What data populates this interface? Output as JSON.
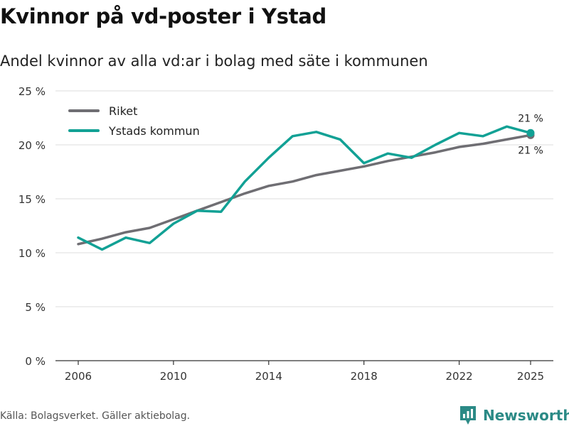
{
  "header": {
    "title": "Kvinnor på vd-poster i Ystad",
    "subtitle": "Andel kvinnor av alla vd:ar i bolag med säte i kommunen"
  },
  "footer": {
    "source": "Källa: Bolagsverket. Gäller aktiebolag.",
    "brand": "Newsworthy",
    "brand_icon": "bar-chart-logo-icon"
  },
  "colors": {
    "riket": "#6f6e73",
    "ystad": "#12a195",
    "grid": "#dddddd",
    "axis": "#333333",
    "brand": "#2b8a86"
  },
  "chart_data": {
    "type": "line",
    "x": [
      2006,
      2007,
      2008,
      2009,
      2010,
      2011,
      2012,
      2013,
      2014,
      2015,
      2016,
      2017,
      2018,
      2019,
      2020,
      2021,
      2022,
      2023,
      2024,
      2025
    ],
    "series": [
      {
        "name": "Riket",
        "color": "#6f6e73",
        "values": [
          10.8,
          11.3,
          11.9,
          12.3,
          13.1,
          13.9,
          14.7,
          15.5,
          16.2,
          16.6,
          17.2,
          17.6,
          18.0,
          18.5,
          18.9,
          19.3,
          19.8,
          20.1,
          20.5,
          20.9
        ]
      },
      {
        "name": "Ystads kommun",
        "color": "#12a195",
        "values": [
          11.4,
          10.3,
          11.4,
          10.9,
          12.7,
          13.9,
          13.8,
          16.6,
          18.8,
          20.8,
          21.2,
          20.5,
          18.3,
          19.2,
          18.8,
          20.0,
          21.1,
          20.8,
          21.7,
          21.1
        ]
      }
    ],
    "xticks": [
      2006,
      2010,
      2014,
      2018,
      2022,
      2025
    ],
    "yticks": [
      {
        "value": 0,
        "label": "0 %"
      },
      {
        "value": 5,
        "label": "5 %"
      },
      {
        "value": 10,
        "label": "10 %"
      },
      {
        "value": 15,
        "label": "15 %"
      },
      {
        "value": 20,
        "label": "20 %"
      },
      {
        "value": 25,
        "label": "25 %"
      }
    ],
    "ylim": [
      0,
      25
    ],
    "grid": true,
    "legend_position": "top-left",
    "end_labels": [
      {
        "series": "Ystads kommun",
        "text": "21 %",
        "placement": "above"
      },
      {
        "series": "Riket",
        "text": "21 %",
        "placement": "below"
      }
    ]
  }
}
